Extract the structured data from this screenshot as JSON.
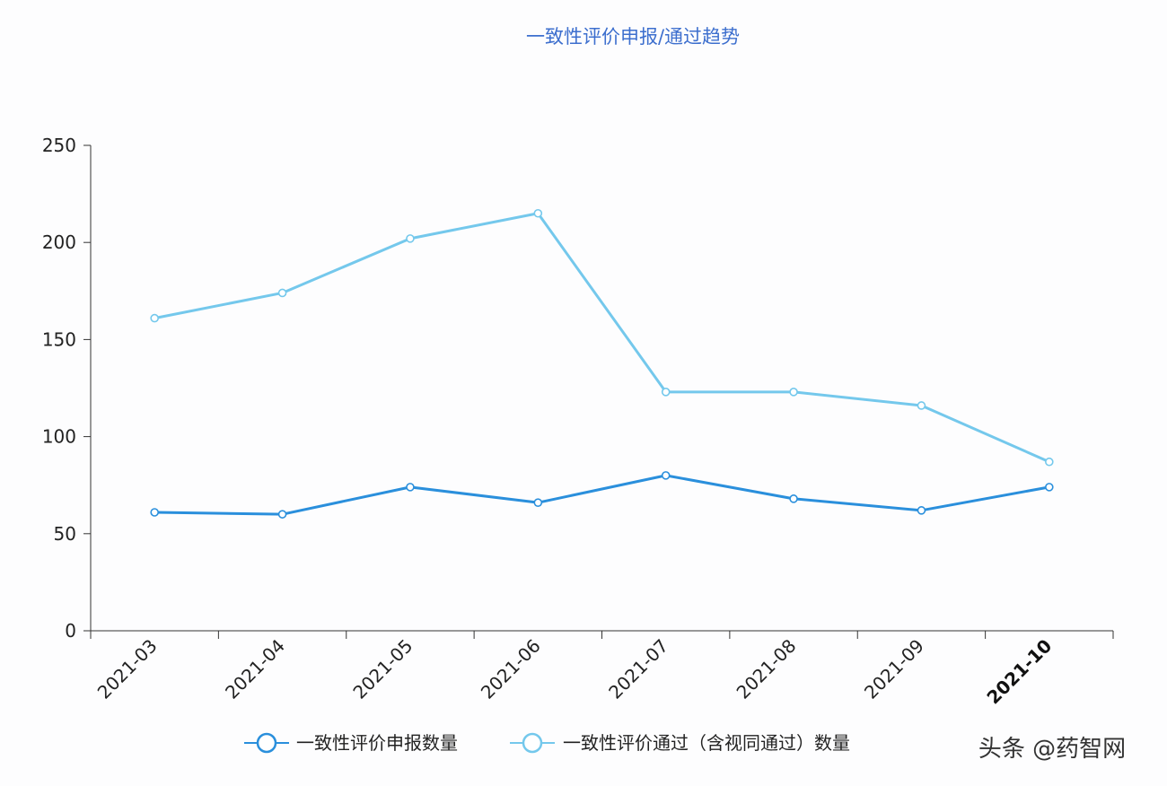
{
  "chart_data": {
    "type": "line",
    "title": "一致性评价申报/通过趋势",
    "xlabel": "",
    "ylabel": "",
    "x": [
      "2021-03",
      "2021-04",
      "2021-05",
      "2021-06",
      "2021-07",
      "2021-08",
      "2021-09",
      "2021-10"
    ],
    "highlight_x": "2021-10",
    "ylim": [
      0,
      250
    ],
    "yticks": [
      0,
      50,
      100,
      150,
      200,
      250
    ],
    "grid": false,
    "legend_position": "bottom",
    "series": [
      {
        "name": "一致性评价申报数量",
        "color": "#2a8fdc",
        "values": [
          61,
          60,
          74,
          66,
          80,
          68,
          62,
          74
        ]
      },
      {
        "name": "一致性评价通过（含视同通过）数量",
        "color": "#74c8ec",
        "values": [
          161,
          174,
          202,
          215,
          123,
          123,
          116,
          87
        ]
      }
    ]
  },
  "watermark": "头条 @药智网",
  "colors": {
    "title": "#3d6fce",
    "axis": "#333333",
    "background": "#fdfdfe"
  }
}
